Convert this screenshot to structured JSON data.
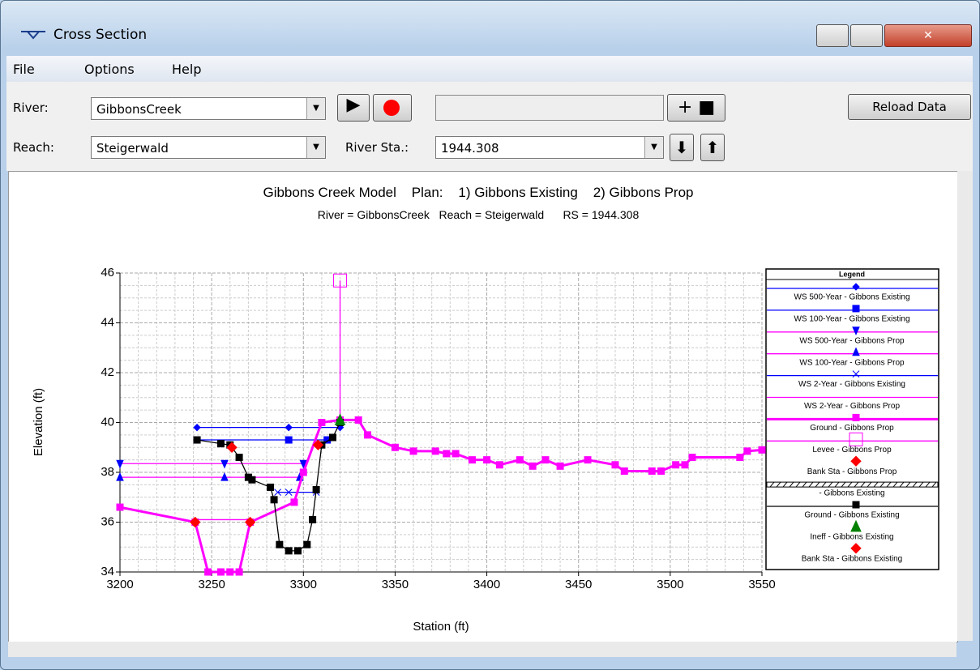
{
  "window": {
    "title": "Cross Section"
  },
  "menu": [
    "File",
    "Options",
    "Help"
  ],
  "toolbar": {
    "river_label": "River:",
    "river_value": "GibbonsCreek",
    "reach_label": "Reach:",
    "reach_value": "Steigerwald",
    "station_label": "River Sta.:",
    "station_value": "1944.308",
    "reload_button": "Reload Data"
  },
  "chart_data": {
    "type": "line",
    "title": "Gibbons Creek Model    Plan:    1) Gibbons Existing    2) Gibbons Prop",
    "subtitle": "River = GibbonsCreek   Reach = Steigerwald      RS = 1944.308",
    "xlabel": "Station (ft)",
    "ylabel": "Elevation (ft)",
    "legend_title": "Legend",
    "xlim": [
      3200,
      3550
    ],
    "xticks": [
      3200,
      3250,
      3300,
      3350,
      3400,
      3450,
      3500,
      3550
    ],
    "ylim": [
      34,
      46
    ],
    "yticks": [
      34,
      36,
      38,
      40,
      42,
      44,
      46
    ],
    "grid": true,
    "series": [
      {
        "name": "WS 500-Year - Gibbons Existing",
        "color": "#0000ff",
        "marker": "diamond",
        "marker_color": "#0000ff",
        "x": [
          3242,
          3292,
          3320
        ],
        "values": [
          39.8,
          39.8,
          39.8
        ]
      },
      {
        "name": "WS 100-Year - Gibbons Existing",
        "color": "#0000ff",
        "marker": "square",
        "marker_color": "#0000ff",
        "x": [
          3242,
          3292,
          3313
        ],
        "values": [
          39.3,
          39.3,
          39.3
        ]
      },
      {
        "name": "WS 500-Year - Gibbons Prop",
        "color": "#ff00ff",
        "marker": "tri-down",
        "marker_color": "#0000ff",
        "x": [
          3200,
          3257,
          3300
        ],
        "values": [
          38.35,
          38.35,
          38.35
        ]
      },
      {
        "name": "WS 100-Year - Gibbons Prop",
        "color": "#ff00ff",
        "marker": "tri-up",
        "marker_color": "#0000ff",
        "x": [
          3200,
          3257,
          3298
        ],
        "values": [
          37.8,
          37.8,
          37.8
        ]
      },
      {
        "name": "WS 2-Year - Gibbons Existing",
        "color": "#0000ff",
        "marker": "x",
        "marker_color": "#0000ff",
        "x": [
          3286,
          3292,
          3307
        ],
        "values": [
          37.2,
          37.2,
          37.2
        ]
      },
      {
        "name": "WS 2-Year - Gibbons Prop",
        "color": "#ff00ff",
        "marker": "none",
        "marker_color": "#ff00ff",
        "x": [
          3241,
          3271
        ],
        "values": [
          36.1,
          36.1
        ]
      },
      {
        "name": "Ground - Gibbons Prop",
        "color": "#ff00ff",
        "marker": "square",
        "marker_color": "#ff00ff",
        "width": 3,
        "x": [
          3200,
          3241,
          3248,
          3255,
          3260,
          3265,
          3271,
          3295,
          3300,
          3310,
          3320,
          3330,
          3335,
          3350,
          3360,
          3372,
          3378,
          3383,
          3392,
          3400,
          3407,
          3418,
          3425,
          3432,
          3440,
          3455,
          3470,
          3475,
          3490,
          3495,
          3503,
          3508,
          3512,
          3538,
          3542,
          3550
        ],
        "values": [
          36.6,
          36.0,
          34.0,
          34.0,
          34.0,
          34.0,
          36.0,
          36.8,
          38.0,
          40.0,
          40.1,
          40.1,
          39.5,
          39.0,
          38.85,
          38.85,
          38.75,
          38.75,
          38.5,
          38.5,
          38.3,
          38.5,
          38.25,
          38.5,
          38.25,
          38.5,
          38.3,
          38.05,
          38.05,
          38.05,
          38.3,
          38.3,
          38.6,
          38.6,
          38.85,
          38.9
        ]
      },
      {
        "name": "Levee - Gibbons Prop",
        "color": "#ff00ff",
        "marker": "open-square",
        "marker_color": "#ff00ff",
        "x": [
          3320,
          3320
        ],
        "values": [
          40.1,
          45.7
        ]
      },
      {
        "name": "Bank Sta - Gibbons Prop",
        "color": "#ff0000",
        "marker": "diamond",
        "marker_color": "#ff0000",
        "noline": true,
        "x": [
          3241,
          3271
        ],
        "values": [
          36.0,
          36.0
        ]
      },
      {
        "name": "- Gibbons Existing",
        "color": "#000000",
        "marker": "hatch",
        "marker_color": "#000000",
        "x": [],
        "values": []
      },
      {
        "name": "Ground - Gibbons Existing",
        "color": "#000000",
        "marker": "square",
        "marker_color": "#000000",
        "x": [
          3242,
          3255,
          3260,
          3265,
          3270,
          3272,
          3282,
          3284,
          3287,
          3292,
          3297,
          3302,
          3305,
          3307,
          3310,
          3316,
          3320
        ],
        "values": [
          39.3,
          39.15,
          39.1,
          38.6,
          37.8,
          37.7,
          37.4,
          36.9,
          35.1,
          34.85,
          34.85,
          35.1,
          36.1,
          37.3,
          39.1,
          39.4,
          40.0
        ]
      },
      {
        "name": "Ineff - Gibbons Existing",
        "color": "#008000",
        "marker": "tri-up",
        "marker_color": "#008000",
        "noline": true,
        "x": [
          3320
        ],
        "values": [
          40.1
        ]
      },
      {
        "name": "Bank Sta - Gibbons Existing",
        "color": "#ff0000",
        "marker": "diamond",
        "marker_color": "#ff0000",
        "noline": true,
        "x": [
          3261,
          3308
        ],
        "values": [
          39.0,
          39.1
        ]
      }
    ]
  }
}
